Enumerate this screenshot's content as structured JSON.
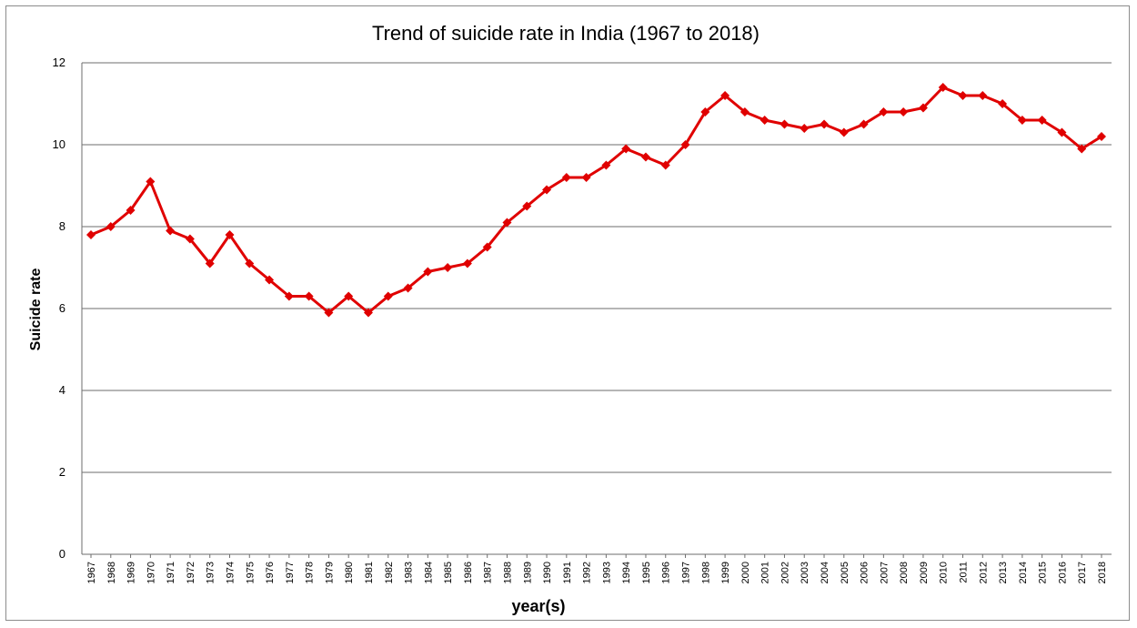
{
  "chart_data": {
    "type": "line",
    "title": "Trend of suicide rate in India (1967 to 2018)",
    "xlabel": "year(s)",
    "ylabel": "Suicide rate",
    "ylim": [
      0,
      12
    ],
    "yticks": [
      0,
      2,
      4,
      6,
      8,
      10,
      12
    ],
    "grid": true,
    "line_color": "#e00000",
    "categories": [
      "1967",
      "1968",
      "1969",
      "1970",
      "1971",
      "1972",
      "1973",
      "1974",
      "1975",
      "1976",
      "1977",
      "1978",
      "1979",
      "1980",
      "1981",
      "1982",
      "1983",
      "1984",
      "1985",
      "1986",
      "1987",
      "1988",
      "1989",
      "1990",
      "1991",
      "1992",
      "1993",
      "1994",
      "1995",
      "1996",
      "1997",
      "1998",
      "1999",
      "2000",
      "2001",
      "2002",
      "2003",
      "2004",
      "2005",
      "2006",
      "2007",
      "2008",
      "2009",
      "2010",
      "2011",
      "2012",
      "2013",
      "2014",
      "2015",
      "2016",
      "2017",
      "2018"
    ],
    "series": [
      {
        "values": [
          7.8,
          8.0,
          8.4,
          9.1,
          7.9,
          7.7,
          7.1,
          7.8,
          7.1,
          6.7,
          6.3,
          6.3,
          5.9,
          6.3,
          5.9,
          6.3,
          6.5,
          6.9,
          7.0,
          7.1,
          7.5,
          8.1,
          8.5,
          8.9,
          9.2,
          9.2,
          9.5,
          9.9,
          9.7,
          9.5,
          10.0,
          10.8,
          11.2,
          10.8,
          10.6,
          10.5,
          10.4,
          10.5,
          10.3,
          10.5,
          10.8,
          10.8,
          10.9,
          11.4,
          11.2,
          11.2,
          11.0,
          10.6,
          10.6,
          10.3,
          9.9,
          10.2
        ]
      }
    ]
  }
}
